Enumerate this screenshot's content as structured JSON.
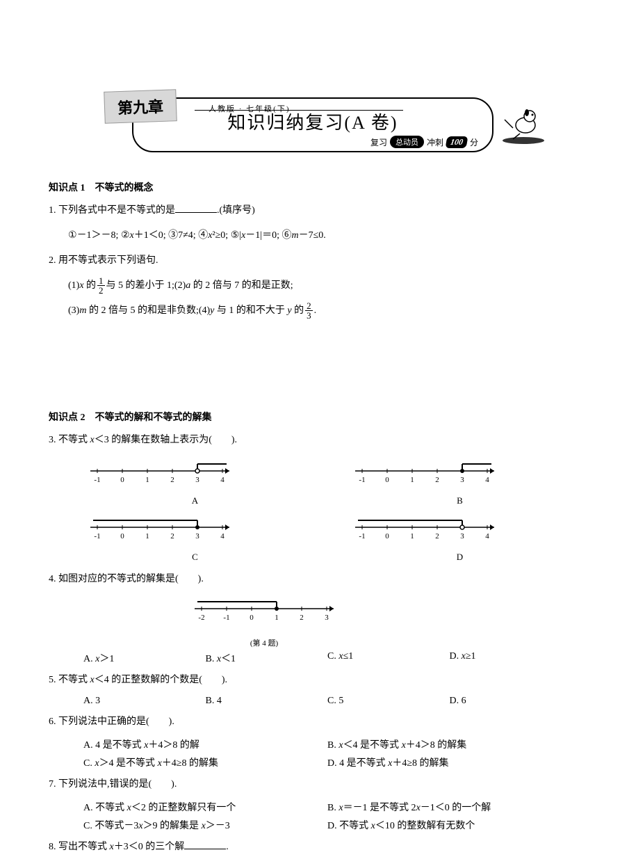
{
  "header": {
    "chapter": "第九章",
    "grade": "人教版 · 七年级(下)",
    "title": "知识归纳复习(A 卷)",
    "subtitle_prefix": "复习",
    "subtitle_badge": "总动员",
    "subtitle_mid": "冲刺",
    "subtitle_score": "100",
    "subtitle_suffix": "分"
  },
  "section1": {
    "title": "知识点 1　不等式的概念",
    "q1": {
      "text": "1. 下列各式中不是不等式的是",
      "hint": ".(填序号)",
      "items": [
        "①",
        "②",
        "③",
        "④",
        "⑤",
        "⑥"
      ],
      "expr1": "－1＞－8;",
      "expr2_a": "x",
      "expr2_b": "＋1＜0;",
      "expr3": "7≠4;",
      "expr4_a": "x",
      "expr4_b": "²≥0;",
      "expr5_a": "|",
      "expr5_b": "x",
      "expr5_c": "－1|＝0;",
      "expr6_a": "m",
      "expr6_b": "－7≤0."
    },
    "q2": {
      "text": "2. 用不等式表示下列语句.",
      "part1_a": "(1)",
      "part1_b": "x",
      "part1_c": " 的",
      "part1_frac_num": "1",
      "part1_frac_den": "2",
      "part1_d": "与 5 的差小于 1;(2)",
      "part1_e": "a",
      "part1_f": " 的 2 倍与 7 的和是正数;",
      "part2_a": "(3)",
      "part2_b": "m",
      "part2_c": " 的 2 倍与 5 的和是非负数;(4)",
      "part2_d": "y",
      "part2_e": " 与 1 的和不大于 ",
      "part2_f": "y",
      "part2_g": " 的",
      "part2_frac_num": "2",
      "part2_frac_den": "3",
      "part2_h": "."
    }
  },
  "section2": {
    "title": "知识点 2　不等式的解和不等式的解集",
    "q3": {
      "text_a": "3. 不等式 ",
      "text_b": "x",
      "text_c": "＜3 的解集在数轴上表示为(　　).",
      "labels": [
        "A",
        "B",
        "C",
        "D"
      ],
      "lines": [
        {
          "ticks": [
            -1,
            0,
            1,
            2,
            3,
            4
          ],
          "circle_at": 3,
          "open": true,
          "dir": "right"
        },
        {
          "ticks": [
            -1,
            0,
            1,
            2,
            3,
            4
          ],
          "circle_at": 3,
          "open": false,
          "dir": "right"
        },
        {
          "ticks": [
            -1,
            0,
            1,
            2,
            3,
            4
          ],
          "circle_at": 3,
          "open": false,
          "dir": "left"
        },
        {
          "ticks": [
            -1,
            0,
            1,
            2,
            3,
            4
          ],
          "circle_at": 3,
          "open": true,
          "dir": "left"
        }
      ]
    },
    "q4": {
      "text": "4. 如图对应的不等式的解集是(　　).",
      "caption": "(第 4 题)",
      "line": {
        "ticks": [
          -2,
          -1,
          0,
          1,
          2,
          3
        ],
        "circle_at": 1,
        "open": false,
        "dir": "left"
      },
      "opts": {
        "A_a": "A. ",
        "A_b": "x",
        "A_c": "＞1",
        "B_a": "B. ",
        "B_b": "x",
        "B_c": "＜1",
        "C_a": "C. ",
        "C_b": "x",
        "C_c": "≤1",
        "D_a": "D. ",
        "D_b": "x",
        "D_c": "≥1"
      }
    },
    "q5": {
      "text_a": "5. 不等式 ",
      "text_b": "x",
      "text_c": "＜4 的正整数解的个数是(　　).",
      "opts": {
        "A": "A. 3",
        "B": "B. 4",
        "C": "C. 5",
        "D": "D. 6"
      }
    },
    "q6": {
      "text": "6. 下列说法中正确的是(　　).",
      "opts": {
        "A_a": "A. 4 是不等式 ",
        "A_b": "x",
        "A_c": "＋4＞8 的解",
        "B_a": "B. ",
        "B_b": "x",
        "B_c": "＜4 是不等式 ",
        "B_d": "x",
        "B_e": "＋4＞8 的解集",
        "C_a": "C. ",
        "C_b": "x",
        "C_c": "＞4 是不等式 ",
        "C_d": "x",
        "C_e": "＋4≥8 的解集",
        "D_a": "D. 4 是不等式 ",
        "D_b": "x",
        "D_c": "＋4≥8 的解集"
      }
    },
    "q7": {
      "text": "7. 下列说法中,错误的是(　　).",
      "opts": {
        "A_a": "A. 不等式 ",
        "A_b": "x",
        "A_c": "＜2 的正整数解只有一个",
        "B_a": "B. ",
        "B_b": "x",
        "B_c": "＝－1 是不等式 2",
        "B_d": "x",
        "B_e": "－1＜0 的一个解",
        "C_a": "C. 不等式－3",
        "C_b": "x",
        "C_c": "＞9 的解集是 ",
        "C_d": "x",
        "C_e": "＞－3",
        "D_a": "D. 不等式 ",
        "D_b": "x",
        "D_c": "＜10 的整数解有无数个"
      }
    },
    "q8": {
      "text_a": "8. 写出不等式 ",
      "text_b": "x",
      "text_c": "＋3＜0 的三个解",
      "text_d": "."
    }
  },
  "colors": {
    "text": "#000000",
    "bg": "#ffffff",
    "banner": "#d8d8d8"
  }
}
